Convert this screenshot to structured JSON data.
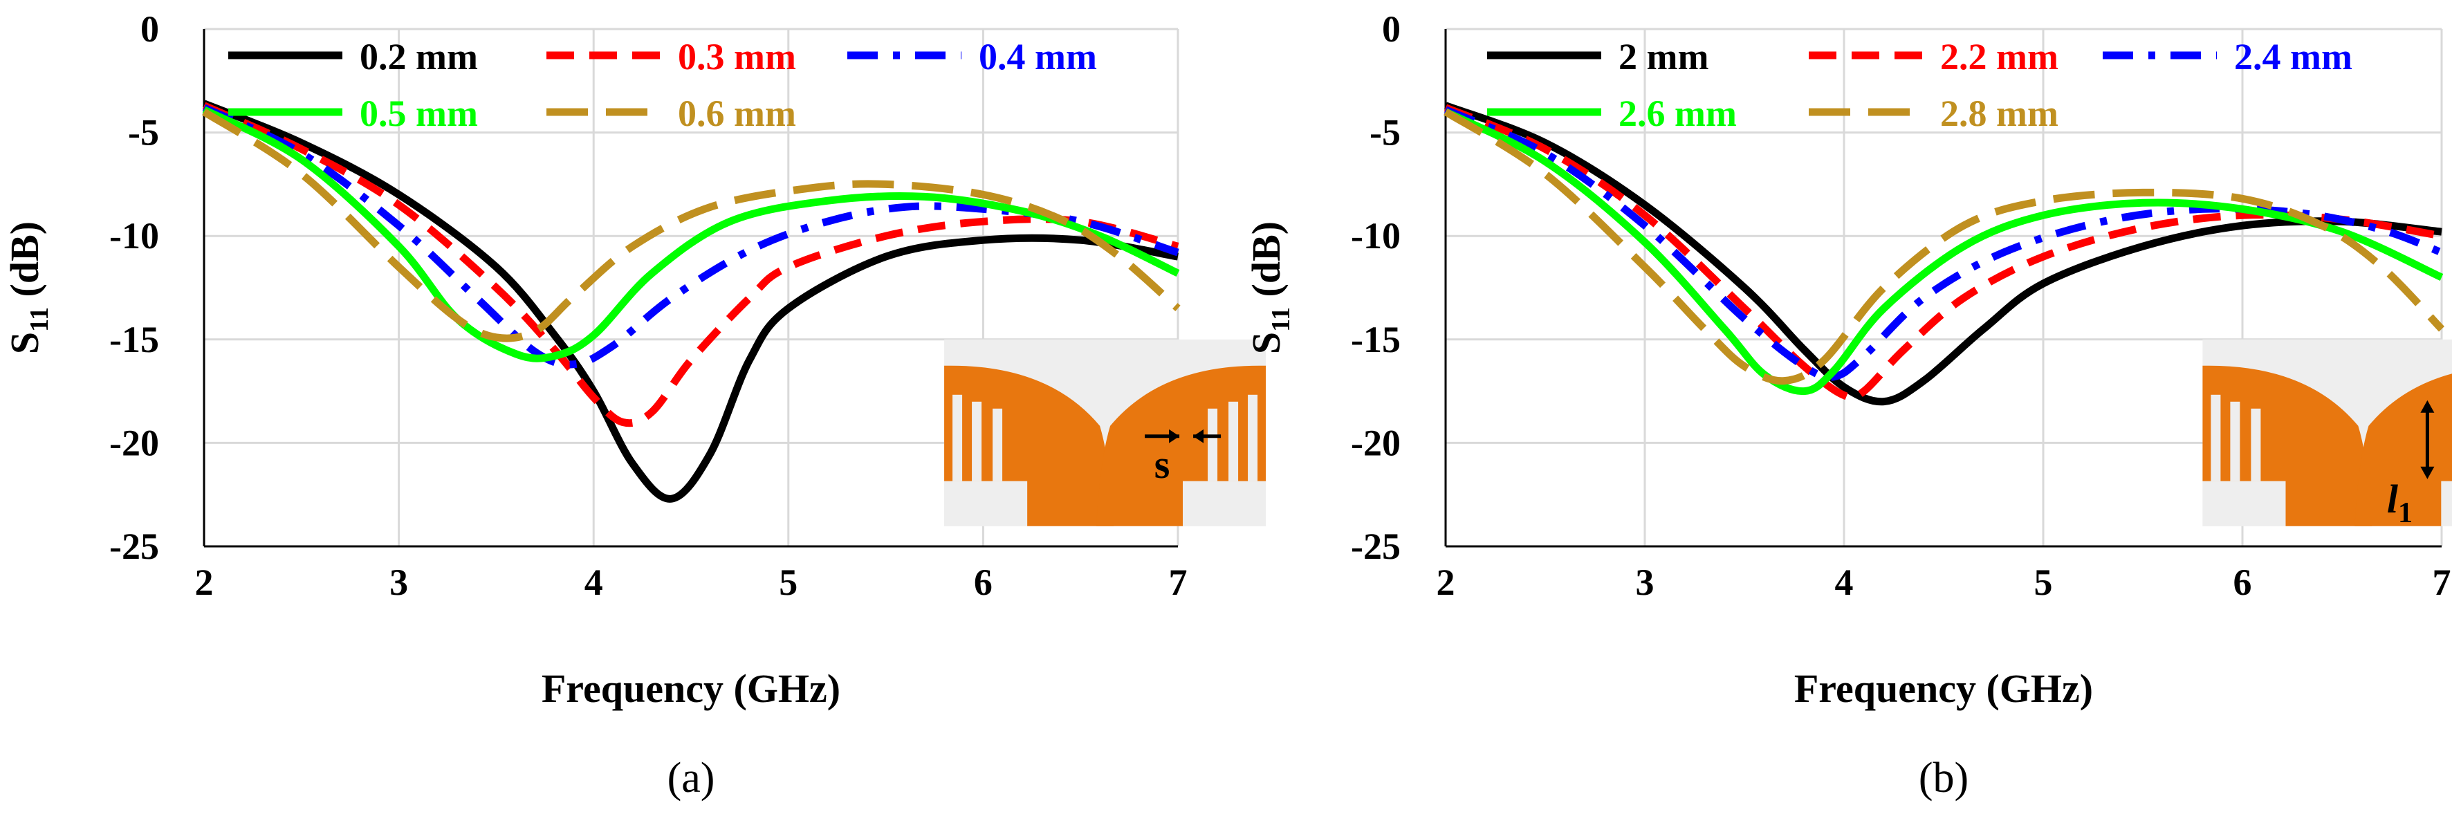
{
  "chart_data": [
    {
      "type": "line",
      "panel_label": "(a)",
      "xlabel": "Frequency (GHz)",
      "ylabel_main": "S",
      "ylabel_sub": "11",
      "ylabel_unit": " (dB)",
      "xlim": [
        2,
        7
      ],
      "ylim": [
        -25,
        0
      ],
      "xticks": [
        "2",
        "3",
        "4",
        "5",
        "6",
        "7"
      ],
      "yticks": [
        "0",
        "-5",
        "-10",
        "-15",
        "-20",
        "-25"
      ],
      "grid": true,
      "legend_location": "top",
      "inset_label": "s",
      "inset_marker": "arrows-horizontal",
      "colors": {
        "orange": "#e8770f",
        "inset_bg": "#eeeeee"
      },
      "series": [
        {
          "name": "0.2 mm",
          "color": "#000000",
          "dash": "solid",
          "x": [
            2.0,
            2.5,
            3.0,
            3.5,
            3.8,
            4.0,
            4.2,
            4.4,
            4.6,
            4.8,
            5.0,
            5.5,
            6.0,
            6.5,
            7.0
          ],
          "y": [
            -3.6,
            -5.5,
            -8.0,
            -11.5,
            -14.8,
            -17.5,
            -21.0,
            -22.7,
            -20.5,
            -16.0,
            -13.5,
            -11.0,
            -10.2,
            -10.2,
            -11.0
          ]
        },
        {
          "name": "0.3 mm",
          "color": "#ff0000",
          "dash": "dash",
          "x": [
            2.0,
            2.5,
            3.0,
            3.5,
            3.8,
            4.0,
            4.15,
            4.3,
            4.5,
            4.8,
            5.0,
            5.5,
            6.0,
            6.5,
            7.0
          ],
          "y": [
            -3.7,
            -5.8,
            -8.5,
            -12.5,
            -15.5,
            -17.8,
            -19.0,
            -18.5,
            -16.0,
            -13.0,
            -11.5,
            -10.0,
            -9.3,
            -9.3,
            -10.5
          ]
        },
        {
          "name": "0.4 mm",
          "color": "#0000ff",
          "dash": "dashdot",
          "x": [
            2.0,
            2.5,
            3.0,
            3.4,
            3.7,
            3.9,
            4.1,
            4.4,
            4.8,
            5.2,
            5.6,
            6.0,
            6.5,
            7.0
          ],
          "y": [
            -3.8,
            -6.0,
            -9.5,
            -13.0,
            -15.6,
            -16.2,
            -15.3,
            -13.0,
            -10.7,
            -9.3,
            -8.6,
            -8.7,
            -9.3,
            -10.8
          ]
        },
        {
          "name": "0.5 mm",
          "color": "#00ff00",
          "dash": "solid",
          "x": [
            2.0,
            2.5,
            3.0,
            3.3,
            3.6,
            3.8,
            4.0,
            4.3,
            4.7,
            5.2,
            5.7,
            6.2,
            6.6,
            7.0
          ],
          "y": [
            -3.9,
            -6.3,
            -10.5,
            -14.0,
            -15.7,
            -15.8,
            -14.8,
            -11.8,
            -9.3,
            -8.3,
            -8.1,
            -8.8,
            -10.0,
            -11.8
          ]
        },
        {
          "name": "0.6 mm",
          "color": "#c09020",
          "dash": "longdash",
          "x": [
            2.0,
            2.5,
            3.0,
            3.3,
            3.5,
            3.7,
            3.9,
            4.2,
            4.6,
            5.1,
            5.5,
            6.0,
            6.4,
            6.7,
            7.0
          ],
          "y": [
            -4.0,
            -7.0,
            -11.5,
            -14.0,
            -14.9,
            -14.6,
            -12.9,
            -10.5,
            -8.6,
            -7.7,
            -7.5,
            -8.0,
            -9.2,
            -11.0,
            -13.5
          ]
        }
      ]
    },
    {
      "type": "line",
      "panel_label": "(b)",
      "xlabel": "Frequency (GHz)",
      "ylabel_main": "S",
      "ylabel_sub": "11",
      "ylabel_unit": " (dB)",
      "xlim": [
        2,
        7
      ],
      "ylim": [
        -25,
        0
      ],
      "xticks": [
        "2",
        "3",
        "4",
        "5",
        "6",
        "7"
      ],
      "yticks": [
        "0",
        "-5",
        "-10",
        "-15",
        "-20",
        "-25"
      ],
      "grid": true,
      "legend_location": "top",
      "inset_label": "l",
      "inset_label_sub": "1",
      "inset_marker": "arrow-vertical",
      "colors": {
        "orange": "#e8770f",
        "inset_bg": "#eeeeee"
      },
      "series": [
        {
          "name": "2 mm",
          "color": "#000000",
          "dash": "solid",
          "x": [
            2.0,
            2.5,
            3.0,
            3.5,
            3.8,
            4.0,
            4.2,
            4.4,
            4.7,
            5.0,
            5.5,
            6.0,
            6.5,
            7.0
          ],
          "y": [
            -3.7,
            -5.5,
            -8.5,
            -12.5,
            -15.5,
            -17.3,
            -18.0,
            -17.0,
            -14.5,
            -12.3,
            -10.5,
            -9.5,
            -9.3,
            -9.8
          ]
        },
        {
          "name": "2.2 mm",
          "color": "#ff0000",
          "dash": "dash",
          "x": [
            2.0,
            2.5,
            3.0,
            3.5,
            3.8,
            4.0,
            4.1,
            4.3,
            4.6,
            5.0,
            5.5,
            6.0,
            6.5,
            7.0
          ],
          "y": [
            -3.8,
            -5.8,
            -9.0,
            -13.5,
            -16.3,
            -17.7,
            -17.5,
            -15.5,
            -13.0,
            -11.0,
            -9.6,
            -9.0,
            -9.2,
            -10.0
          ]
        },
        {
          "name": "2.4 mm",
          "color": "#0000ff",
          "dash": "dashdot",
          "x": [
            2.0,
            2.5,
            3.0,
            3.5,
            3.8,
            3.95,
            4.1,
            4.4,
            4.8,
            5.3,
            5.8,
            6.3,
            6.7,
            7.0
          ],
          "y": [
            -3.9,
            -6.0,
            -9.5,
            -14.0,
            -16.3,
            -16.8,
            -15.8,
            -13.0,
            -10.8,
            -9.3,
            -8.7,
            -8.9,
            -9.7,
            -10.8
          ]
        },
        {
          "name": "2.6 mm",
          "color": "#00ff00",
          "dash": "solid",
          "x": [
            2.0,
            2.5,
            3.0,
            3.4,
            3.6,
            3.8,
            3.95,
            4.2,
            4.6,
            5.0,
            5.5,
            6.0,
            6.5,
            7.0
          ],
          "y": [
            -4.0,
            -6.4,
            -10.3,
            -14.5,
            -16.7,
            -17.5,
            -16.5,
            -13.5,
            -10.5,
            -9.0,
            -8.4,
            -8.7,
            -9.8,
            -12.0
          ]
        },
        {
          "name": "2.8 mm",
          "color": "#c09020",
          "dash": "longdash",
          "x": [
            2.0,
            2.5,
            3.0,
            3.3,
            3.5,
            3.7,
            3.9,
            4.2,
            4.6,
            5.0,
            5.5,
            6.0,
            6.4,
            6.7,
            7.0
          ],
          "y": [
            -4.0,
            -7.0,
            -11.5,
            -14.5,
            -16.3,
            -17.0,
            -16.0,
            -12.5,
            -9.5,
            -8.3,
            -7.9,
            -8.2,
            -9.5,
            -11.5,
            -14.5
          ]
        }
      ]
    }
  ]
}
